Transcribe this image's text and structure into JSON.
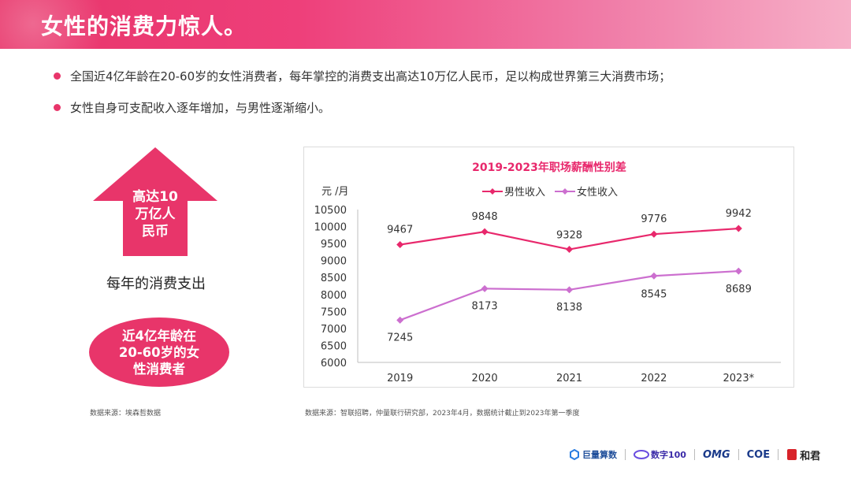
{
  "header": {
    "title": "女性的消费力惊人。"
  },
  "bullets": [
    "全国近4亿年龄在20-60岁的女性消费者，每年掌控的消费支出高达10万亿人民币，足以构成世界第三大消费市场；",
    "女性自身可支配收入逐年增加，与男性逐渐缩小。"
  ],
  "left_panel": {
    "arrow_text": [
      "高达10",
      "万亿人",
      "民币"
    ],
    "caption": "每年的消费支出",
    "oval_text": [
      "近4亿年龄在",
      "20-60岁的女",
      "性消费者"
    ],
    "source": "数据来源：埃森哲数据"
  },
  "colors": {
    "accent": "#e8356a",
    "male": "#e8286c",
    "female": "#cc6fcf"
  },
  "chart_data": {
    "type": "line",
    "title": "2019-2023年职场薪酬性别差",
    "ylabel": "元 /月",
    "categories": [
      "2019",
      "2020",
      "2021",
      "2022",
      "2023*"
    ],
    "series": [
      {
        "name": "男性收入",
        "values": [
          9467,
          9848,
          9328,
          9776,
          9942
        ]
      },
      {
        "name": "女性收入",
        "values": [
          7245,
          8173,
          8138,
          8545,
          8689
        ]
      }
    ],
    "ylim": [
      6000,
      10500
    ],
    "yticks": [
      6000,
      6500,
      7000,
      7500,
      8000,
      8500,
      9000,
      9500,
      10000,
      10500
    ],
    "legend": "top",
    "grid": false,
    "source": "数据来源：智联招聘，仲量联行研究部，2023年4月，数据统计截止到2023年第一季度"
  },
  "footer": {
    "logos": [
      {
        "name": "juliang-logo",
        "text": "巨量算数"
      },
      {
        "name": "shuzi100-logo",
        "text": "数字100"
      },
      {
        "name": "omg-logo",
        "text": "OMG"
      },
      {
        "name": "coe-logo",
        "text": "COE"
      },
      {
        "name": "hejun-logo",
        "text": "和君"
      }
    ]
  }
}
